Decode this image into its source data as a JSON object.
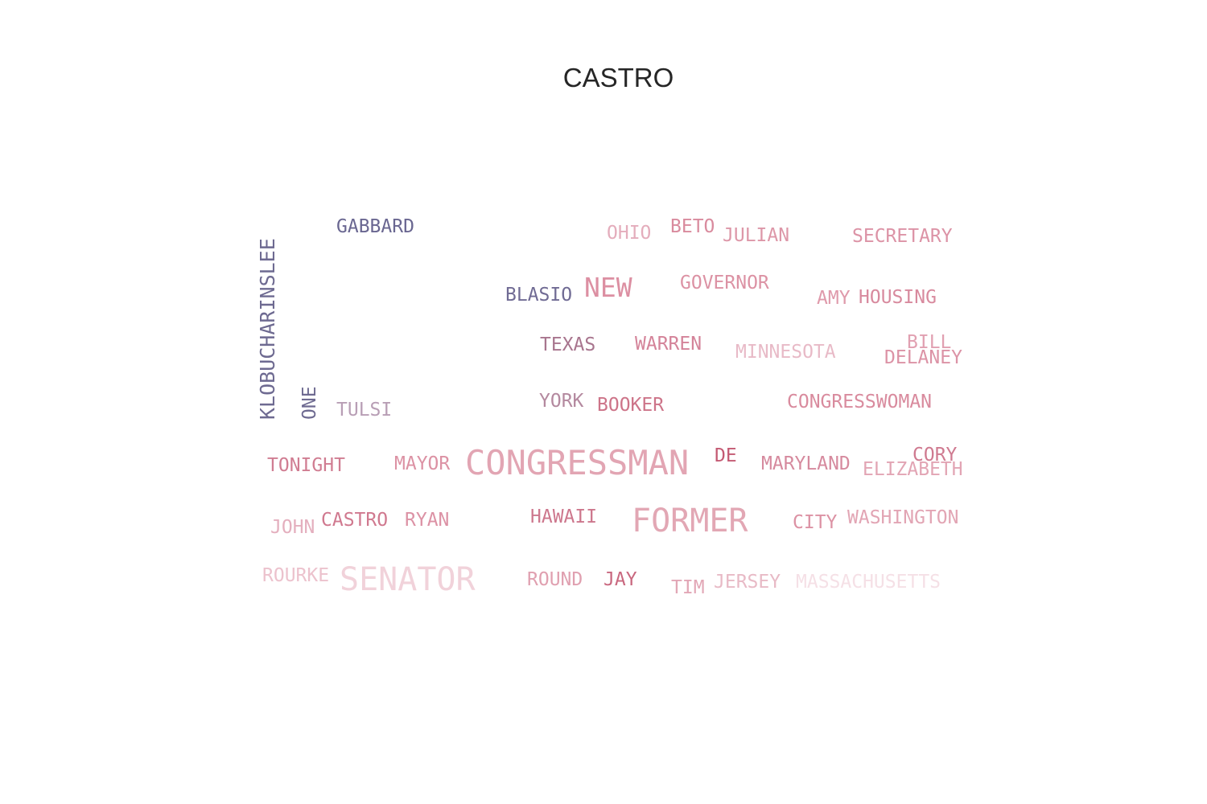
{
  "chart_data": {
    "type": "wordcloud",
    "title": "CASTRO",
    "words": [
      {
        "text": "CONGRESSMAN",
        "weight": 42,
        "color": "#e2a5b3"
      },
      {
        "text": "FORMER",
        "weight": 40,
        "color": "#e2a7b4"
      },
      {
        "text": "SENATOR",
        "weight": 40,
        "color": "#f1d2da"
      },
      {
        "text": "NEW",
        "weight": 33,
        "color": "#dc8fa2"
      },
      {
        "text": "KLOBUCHARINSLEE",
        "weight": 25,
        "color": "#6e6a91"
      },
      {
        "text": "GABBARD",
        "weight": 23,
        "color": "#6a6791"
      },
      {
        "text": "OHIO",
        "weight": 23,
        "color": "#e4adbc"
      },
      {
        "text": "BETO",
        "weight": 23,
        "color": "#d98b9e"
      },
      {
        "text": "JULIAN",
        "weight": 23,
        "color": "#dd97a8"
      },
      {
        "text": "SECRETARY",
        "weight": 23,
        "color": "#dc93a6"
      },
      {
        "text": "BLASIO",
        "weight": 23,
        "color": "#706b94"
      },
      {
        "text": "GOVERNOR",
        "weight": 23,
        "color": "#dc92a4"
      },
      {
        "text": "AMY",
        "weight": 23,
        "color": "#df9aab"
      },
      {
        "text": "HOUSING",
        "weight": 23,
        "color": "#d88a9e"
      },
      {
        "text": "TEXAS",
        "weight": 23,
        "color": "#a8758e"
      },
      {
        "text": "WARREN",
        "weight": 23,
        "color": "#d48399"
      },
      {
        "text": "MINNESOTA",
        "weight": 23,
        "color": "#e8bac7"
      },
      {
        "text": "BILL",
        "weight": 23,
        "color": "#e1a0b1"
      },
      {
        "text": "DELANEY",
        "weight": 23,
        "color": "#dc93a6"
      },
      {
        "text": "ONE",
        "weight": 23,
        "color": "#6e6a91"
      },
      {
        "text": "TULSI",
        "weight": 23,
        "color": "#b89eb5"
      },
      {
        "text": "YORK",
        "weight": 23,
        "color": "#b4899f"
      },
      {
        "text": "BOOKER",
        "weight": 23,
        "color": "#cd7489"
      },
      {
        "text": "CONGRESSWOMAN",
        "weight": 23,
        "color": "#d98b9e"
      },
      {
        "text": "TONIGHT",
        "weight": 23,
        "color": "#d07d92"
      },
      {
        "text": "MAYOR",
        "weight": 23,
        "color": "#dc92a4"
      },
      {
        "text": "DE",
        "weight": 23,
        "color": "#c45a73"
      },
      {
        "text": "MARYLAND",
        "weight": 23,
        "color": "#d68a9e"
      },
      {
        "text": "CORY",
        "weight": 23,
        "color": "#cf7a90"
      },
      {
        "text": "ELIZABETH",
        "weight": 23,
        "color": "#e2a5b4"
      },
      {
        "text": "JOHN",
        "weight": 23,
        "color": "#e4afbe"
      },
      {
        "text": "CASTRO",
        "weight": 23,
        "color": "#d0798f"
      },
      {
        "text": "RYAN",
        "weight": 23,
        "color": "#dc92a5"
      },
      {
        "text": "HAWAII",
        "weight": 23,
        "color": "#cd778d"
      },
      {
        "text": "CITY",
        "weight": 23,
        "color": "#dc92a4"
      },
      {
        "text": "WASHINGTON",
        "weight": 23,
        "color": "#e2a5b4"
      },
      {
        "text": "ROURKE",
        "weight": 23,
        "color": "#ecc2cd"
      },
      {
        "text": "ROUND",
        "weight": 23,
        "color": "#e0a0b0"
      },
      {
        "text": "JAY",
        "weight": 23,
        "color": "#c9687f"
      },
      {
        "text": "TIM",
        "weight": 23,
        "color": "#e2a7b6"
      },
      {
        "text": "JERSEY",
        "weight": 23,
        "color": "#e8bac6"
      },
      {
        "text": "MASSACHUSETTS",
        "weight": 23,
        "color": "#f5e0e6"
      }
    ]
  }
}
